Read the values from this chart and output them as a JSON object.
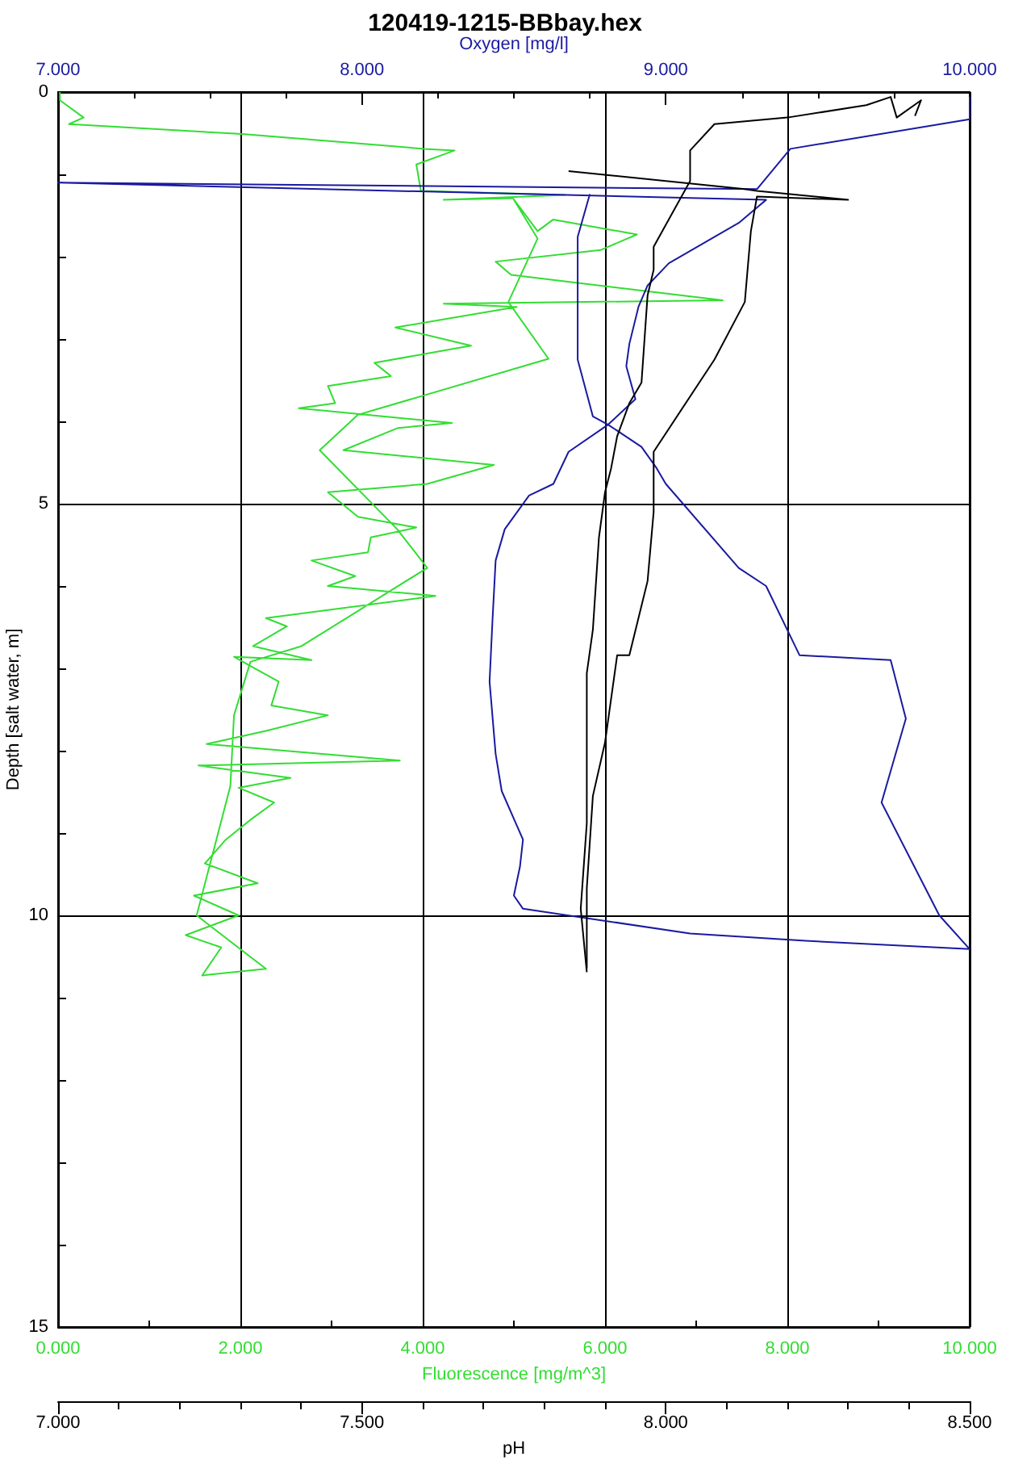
{
  "chart_data": [
    {
      "type": "line",
      "title": "120419-1215-BBbay.hex",
      "xlabel": "Fluorescence [mg/m^3]",
      "x2label": "Oxygen [mg/l]",
      "ylabel": "Depth [salt water, m]",
      "xlim": [
        0,
        10
      ],
      "xticks": [
        {
          "value": 0,
          "label": "0.000"
        },
        {
          "value": 2,
          "label": "2.000"
        },
        {
          "value": 4,
          "label": "4.000"
        },
        {
          "value": 6,
          "label": "6.000"
        },
        {
          "value": 8,
          "label": "8.000"
        },
        {
          "value": 10,
          "label": "10.000"
        }
      ],
      "x2lim": [
        7,
        10
      ],
      "x2ticks": [
        {
          "value": 7,
          "label": "7.000"
        },
        {
          "value": 8,
          "label": "8.000"
        },
        {
          "value": 9,
          "label": "9.000"
        },
        {
          "value": 10,
          "label": "10.000"
        }
      ],
      "ylim": [
        15,
        0
      ],
      "yticks": [
        0,
        5,
        10,
        15
      ],
      "grid": true,
      "marker": "none",
      "line_style": "solid",
      "series": [
        {
          "color": "#33dd33",
          "x": [
            0.02,
            0.02,
            0.28,
            0.12,
            2.02,
            4.02,
            4.35,
            3.93,
            3.98,
            5.56,
            4.23,
            4.99,
            5.26,
            5.43,
            6.35,
            5.95,
            4.8,
            4.97,
            7.29,
            4.23,
            5.03,
            3.7,
            4.53,
            3.47,
            3.65,
            2.96,
            3.04,
            2.64,
            4.32,
            3.73,
            3.13,
            4.78,
            4.05,
            2.96,
            3.29,
            3.93,
            3.43,
            3.4,
            2.78,
            3.26,
            2.96,
            4.14,
            2.28,
            2.51,
            2.14,
            2.78,
            1.93,
            2.09,
            2.42,
            2.34,
            2.96,
            2.28,
            1.63,
            3.75,
            1.54,
            2.55,
            1.98,
            2.37,
            2.11,
            1.84,
            1.61,
            2.19,
            1.49,
            1.98,
            1.4,
            1.79,
            1.58,
            2.28,
            1.52,
            1.89,
            1.93,
            2.11,
            2.67,
            4.05,
            3.72,
            2.87,
            3.29,
            5.38,
            4.94,
            5.26,
            4.99
          ],
          "values": [
            0,
            0.1,
            0.31,
            0.39,
            0.51,
            0.69,
            0.71,
            0.88,
            1.2,
            1.25,
            1.31,
            1.29,
            1.69,
            1.55,
            1.73,
            1.92,
            2.06,
            2.22,
            2.53,
            2.57,
            2.61,
            2.86,
            3.08,
            3.29,
            3.45,
            3.57,
            3.78,
            3.84,
            4.02,
            4.08,
            4.35,
            4.53,
            4.76,
            4.86,
            5.16,
            5.29,
            5.41,
            5.59,
            5.69,
            5.88,
            6.0,
            6.12,
            6.39,
            6.49,
            6.73,
            6.9,
            6.86,
            6.96,
            7.16,
            7.45,
            7.57,
            7.76,
            7.92,
            8.12,
            8.18,
            8.33,
            8.45,
            8.63,
            8.84,
            9.08,
            9.37,
            9.61,
            9.76,
            10.0,
            10.24,
            10.39,
            10.73,
            10.65,
            10.0,
            8.43,
            7.57,
            6.92,
            6.73,
            5.78,
            5.31,
            4.35,
            3.92,
            3.24,
            2.55,
            1.78,
            1.29
          ]
        },
        {
          "color": "#1a1aa0",
          "axis": "x2",
          "x": [
            10.0,
            10.0,
            9.41,
            9.3,
            7.0,
            9.33,
            9.24,
            9.01,
            8.94,
            8.91,
            8.88,
            8.87,
            8.9,
            8.81,
            8.68,
            8.63,
            8.55,
            8.47,
            8.44,
            8.43,
            8.42,
            8.44,
            8.46,
            8.53,
            8.52,
            8.5,
            8.53,
            9.08,
            9.46,
            10.0,
            9.9,
            9.71,
            9.79,
            9.74,
            9.44,
            9.33,
            9.24,
            9.0,
            8.97,
            8.92,
            8.81,
            8.76,
            8.71,
            8.71,
            8.71,
            8.75
          ],
          "values": [
            0.06,
            0.33,
            0.69,
            1.18,
            1.1,
            1.31,
            1.59,
            2.08,
            2.35,
            2.61,
            3.06,
            3.33,
            3.73,
            4.04,
            4.37,
            4.76,
            4.9,
            5.31,
            5.69,
            6.39,
            7.16,
            8.04,
            8.49,
            9.08,
            9.41,
            9.76,
            9.92,
            10.22,
            10.31,
            10.41,
            10.0,
            8.63,
            7.61,
            6.9,
            6.84,
            6.0,
            5.78,
            4.76,
            4.57,
            4.31,
            4.04,
            3.94,
            3.25,
            2.55,
            1.76,
            1.24
          ]
        }
      ]
    },
    {
      "type": "line",
      "xlabel": "pH",
      "xlim": [
        7,
        8.5
      ],
      "xticks": [
        {
          "value": 7,
          "label": "7.000"
        },
        {
          "value": 7.5,
          "label": "7.500"
        },
        {
          "value": 8,
          "label": "8.000"
        },
        {
          "value": 8.5,
          "label": "8.500"
        }
      ],
      "ylim": [
        15,
        0
      ],
      "tick_labels": "x",
      "marker": "none",
      "line_style": "solid",
      "series": [
        {
          "color": "#000000",
          "x": [
            8.41,
            8.42,
            8.38,
            8.37,
            8.33,
            8.2,
            8.08,
            8.04,
            8.04,
            7.98,
            7.98,
            7.97,
            7.96,
            7.94,
            7.92,
            7.91,
            7.9,
            7.89,
            7.88,
            7.87,
            7.87,
            7.87,
            7.86,
            7.87
          ],
          "values": [
            0.29,
            0.1,
            0.31,
            0.06,
            0.16,
            0.31,
            0.39,
            0.71,
            1.08,
            1.88,
            2.16,
            2.47,
            3.53,
            3.78,
            4.18,
            4.57,
            4.86,
            5.41,
            6.53,
            7.06,
            7.45,
            8.88,
            9.92,
            10.69
          ]
        },
        {
          "color": "#000000",
          "x": [
            7.84,
            8.13,
            8.15,
            8.3,
            8.15,
            8.14,
            8.13,
            8.08,
            7.98,
            7.98,
            7.97,
            7.94,
            7.92,
            7.9,
            7.88,
            7.87,
            7.87,
            7.87
          ],
          "values": [
            0.96,
            1.18,
            1.2,
            1.31,
            1.27,
            1.69,
            2.55,
            3.25,
            4.37,
            5.1,
            5.94,
            6.84,
            6.84,
            7.9,
            8.55,
            9.67,
            10.0,
            10.65
          ]
        }
      ]
    }
  ]
}
